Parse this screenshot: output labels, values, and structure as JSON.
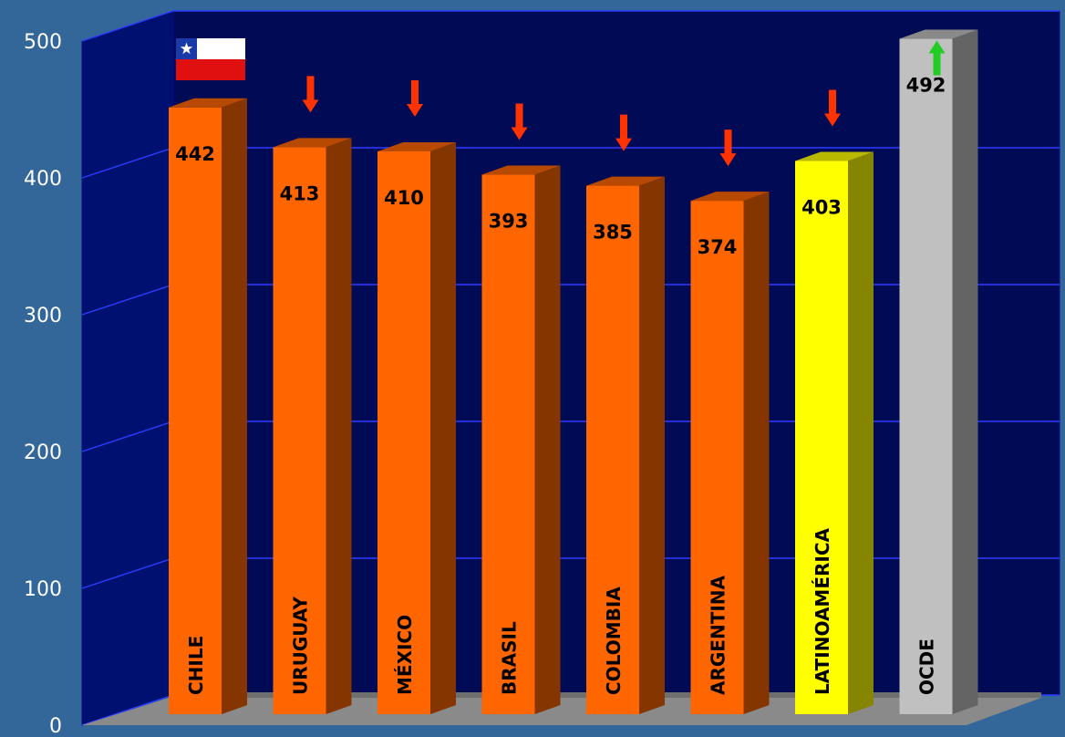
{
  "chart_data": {
    "type": "bar",
    "categories": [
      "CHILE",
      "URUGUAY",
      "MÉXICO",
      "BRASIL",
      "COLOMBIA",
      "ARGENTINA",
      "LATINOAMÉRICA",
      "OCDE"
    ],
    "values": [
      442,
      413,
      410,
      393,
      385,
      374,
      403,
      492
    ],
    "value_labels": [
      "442",
      "413",
      "410",
      "393",
      "385",
      "374",
      "403",
      "492"
    ],
    "yticks": [
      "0",
      "100",
      "200",
      "300",
      "400",
      "500"
    ],
    "ylim": [
      0,
      500
    ],
    "grid": true,
    "legend": "none",
    "style": "3d-bars",
    "bar_colors": [
      "#ff6600",
      "#ff6600",
      "#ff6600",
      "#ff6600",
      "#ff6600",
      "#ff6600",
      "#ffff00",
      "#c0c0c0"
    ],
    "annotations": [
      {
        "category": "CHILE",
        "marker": "chile-flag"
      },
      {
        "category": "URUGUAY",
        "marker": "down-arrow",
        "color": "#ff3300"
      },
      {
        "category": "MÉXICO",
        "marker": "down-arrow",
        "color": "#ff3300"
      },
      {
        "category": "BRASIL",
        "marker": "down-arrow",
        "color": "#ff3300"
      },
      {
        "category": "COLOMBIA",
        "marker": "down-arrow",
        "color": "#ff3300"
      },
      {
        "category": "ARGENTINA",
        "marker": "down-arrow",
        "color": "#ff3300"
      },
      {
        "category": "LATINOAMÉRICA",
        "marker": "down-arrow",
        "color": "#ff3300"
      },
      {
        "category": "OCDE",
        "marker": "up-arrow",
        "color": "#22cc22"
      }
    ],
    "colors": {
      "background": "#336699",
      "back_wall": "#000a55",
      "grid": "#2a3dff",
      "floor": "#8a8a8a"
    }
  }
}
